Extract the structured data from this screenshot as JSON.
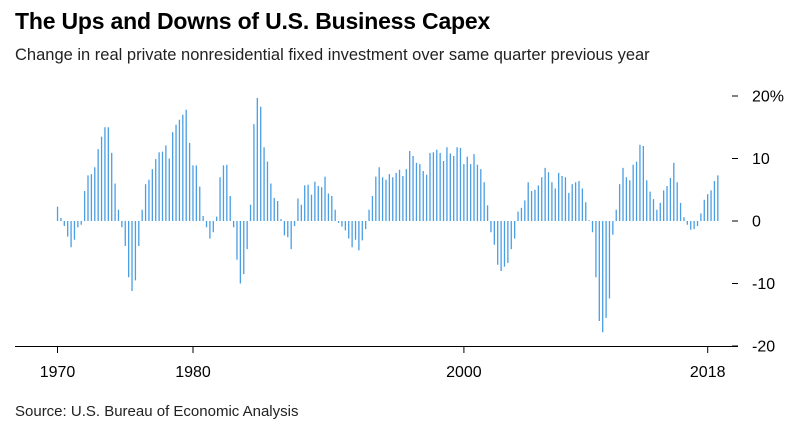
{
  "title": "The Ups and Downs of U.S. Business Capex",
  "subtitle": "Change in real private nonresidential fixed investment over same quarter previous year",
  "source": "Source: U.S. Bureau of Economic Analysis",
  "chart_data": {
    "type": "bar",
    "title": "The Ups and Downs of U.S. Business Capex",
    "subtitle": "Change in real private nonresidential fixed investment over same quarter previous year",
    "xlabel": "",
    "ylabel": "",
    "unit": "%",
    "x_ticks": [
      {
        "value": 1970,
        "label": "1970"
      },
      {
        "value": 1980,
        "label": "1980"
      },
      {
        "value": 2000,
        "label": "2000"
      },
      {
        "value": 2018,
        "label": "2018"
      }
    ],
    "y_ticks": [
      {
        "value": 20,
        "label": "20%"
      },
      {
        "value": 10,
        "label": "10"
      },
      {
        "value": 0,
        "label": "0"
      },
      {
        "value": -10,
        "label": "-10"
      },
      {
        "value": -20,
        "label": "-20"
      }
    ],
    "xlim": [
      1969.9,
      2018.6
    ],
    "ylim": [
      -20,
      20
    ],
    "grid": false,
    "bar_color": "#4a9ee3",
    "start_year": 1970.0,
    "quarter_step": 0.25,
    "values": [
      2.3,
      0.5,
      -0.8,
      -2.5,
      -4.2,
      -3.0,
      -1.0,
      -0.6,
      4.8,
      7.3,
      7.5,
      8.6,
      11.5,
      13.5,
      15.0,
      15.0,
      10.9,
      6.0,
      1.8,
      -1.0,
      -4.0,
      -9.0,
      -11.2,
      -9.5,
      -4.0,
      1.8,
      5.9,
      6.6,
      8.3,
      9.9,
      11.0,
      11.1,
      12.1,
      10.0,
      14.2,
      15.4,
      16.2,
      17.0,
      17.8,
      12.5,
      8.9,
      8.9,
      5.5,
      0.8,
      -1.0,
      -2.8,
      -1.8,
      0.7,
      7.0,
      8.9,
      9.0,
      4.0,
      -1.0,
      -6.2,
      -10.0,
      -8.5,
      -4.5,
      2.6,
      15.5,
      19.7,
      18.3,
      11.8,
      9.5,
      6.0,
      3.7,
      3.2,
      0.3,
      -2.3,
      -2.6,
      -4.5,
      -0.8,
      3.6,
      2.6,
      5.7,
      5.8,
      4.2,
      6.3,
      5.6,
      5.4,
      7.1,
      4.4,
      4.0,
      1.8,
      -0.3,
      -0.9,
      -1.5,
      -2.8,
      -4.2,
      -3.0,
      -4.7,
      -3.1,
      -1.3,
      1.8,
      4.0,
      7.1,
      8.6,
      7.0,
      6.6,
      7.5,
      7.0,
      7.7,
      8.2,
      7.2,
      8.3,
      11.2,
      10.4,
      9.3,
      9.1,
      8.0,
      7.4,
      10.9,
      11.0,
      11.4,
      10.9,
      9.6,
      11.8,
      10.8,
      10.4,
      11.8,
      11.7,
      9.1,
      10.3,
      9.1,
      10.7,
      9.0,
      8.3,
      6.2,
      2.5,
      -1.8,
      -3.8,
      -7.0,
      -8.0,
      -7.3,
      -6.7,
      -4.5,
      -2.8,
      1.5,
      2.1,
      3.3,
      6.2,
      4.8,
      5.0,
      5.7,
      7.0,
      8.5,
      7.8,
      6.2,
      5.2,
      7.7,
      7.2,
      7.0,
      4.5,
      5.9,
      6.2,
      6.4,
      5.2,
      3.0,
      0.1,
      -1.8,
      -9.0,
      -16.0,
      -17.8,
      -15.5,
      -12.4,
      -2.2,
      1.8,
      5.9,
      8.5,
      7.0,
      6.5,
      9.0,
      9.5,
      12.2,
      12.0,
      6.5,
      4.7,
      3.5,
      1.8,
      2.9,
      4.9,
      5.6,
      6.9,
      9.3,
      6.2,
      2.9,
      0.6,
      -0.6,
      -1.4,
      -1.3,
      -0.8,
      1.2,
      3.4,
      4.3,
      4.9,
      6.4,
      7.3
    ]
  }
}
